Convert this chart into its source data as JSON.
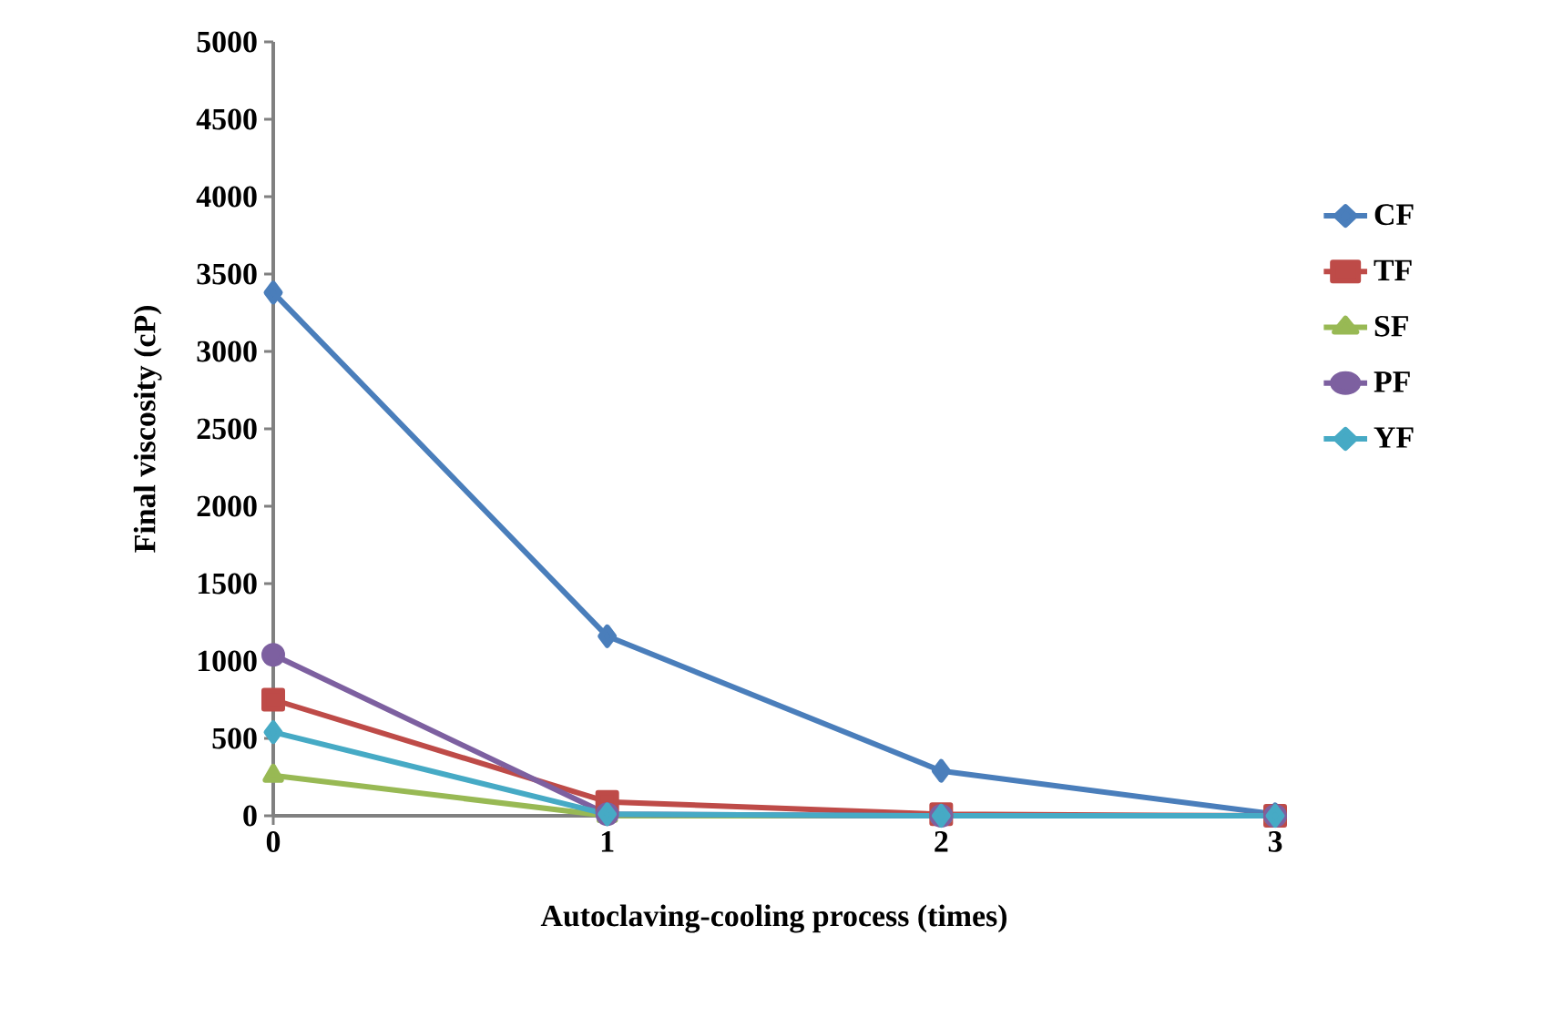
{
  "chart_data": {
    "type": "line",
    "xlabel": "Autoclaving-cooling process (times)",
    "ylabel": "Final viscosity (cP)",
    "x": [
      0,
      1,
      2,
      3
    ],
    "xlim": [
      0,
      3
    ],
    "xticks": [
      0,
      1,
      2,
      3
    ],
    "ylim": [
      0,
      5000
    ],
    "yticks": [
      0,
      500,
      1000,
      1500,
      2000,
      2500,
      3000,
      3500,
      4000,
      4500,
      5000
    ],
    "grid": false,
    "legend": "right",
    "line_style": "solid",
    "series": [
      {
        "name": "CF",
        "color": "#4a7ebb",
        "marker": "diamond",
        "values": [
          3380,
          1160,
          290,
          10
        ]
      },
      {
        "name": "TF",
        "color": "#be4b48",
        "marker": "square",
        "values": [
          750,
          90,
          10,
          0
        ]
      },
      {
        "name": "SF",
        "color": "#98b954",
        "marker": "triangle",
        "values": [
          260,
          0,
          0,
          0
        ]
      },
      {
        "name": "PF",
        "color": "#7d60a0",
        "marker": "circle",
        "values": [
          1040,
          10,
          0,
          0
        ]
      },
      {
        "name": "YF",
        "color": "#46aac5",
        "marker": "diamond",
        "values": [
          540,
          10,
          0,
          0
        ]
      }
    ]
  }
}
